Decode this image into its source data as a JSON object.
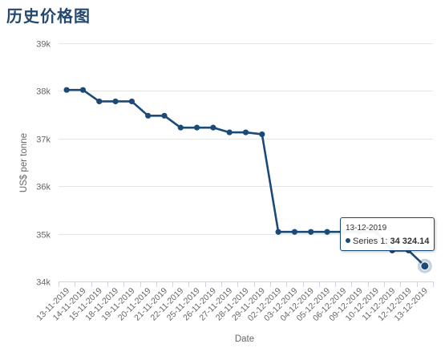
{
  "page": {
    "title": "历史价格图"
  },
  "colors": {
    "series": "#1a4a78",
    "title": "#24486e",
    "grid": "#e6e6e6",
    "axis": "#ccd6eb",
    "text": "#666666"
  },
  "chart_data": {
    "type": "line",
    "title": "",
    "xlabel": "Date",
    "ylabel": "US$ per tonne",
    "ylim": [
      34000,
      39000
    ],
    "yticks": [
      34000,
      35000,
      36000,
      37000,
      38000,
      39000
    ],
    "ytick_labels": [
      "34k",
      "35k",
      "36k",
      "37k",
      "38k",
      "39k"
    ],
    "grid": true,
    "legend": "none",
    "categories": [
      "13-11-2019",
      "14-11-2019",
      "15-11-2019",
      "18-11-2019",
      "19-11-2019",
      "20-11-2019",
      "21-11-2019",
      "22-11-2019",
      "25-11-2019",
      "26-11-2019",
      "27-11-2019",
      "28-11-2019",
      "29-11-2019",
      "02-12-2019",
      "03-12-2019",
      "04-12-2019",
      "05-12-2019",
      "06-12-2019",
      "09-12-2019",
      "10-12-2019",
      "11-12-2019",
      "12-12-2019",
      "13-12-2019"
    ],
    "series": [
      {
        "name": "Series 1",
        "values": [
          38020,
          38020,
          37780,
          37780,
          37780,
          37480,
          37480,
          37230,
          37230,
          37230,
          37130,
          37130,
          37090,
          35040,
          35040,
          35040,
          35040,
          35040,
          35040,
          35040,
          34650,
          34650,
          34324.14
        ]
      }
    ],
    "tooltip": {
      "date": "13-12-2019",
      "series": "Series 1",
      "value_text": "34 324.14"
    }
  }
}
